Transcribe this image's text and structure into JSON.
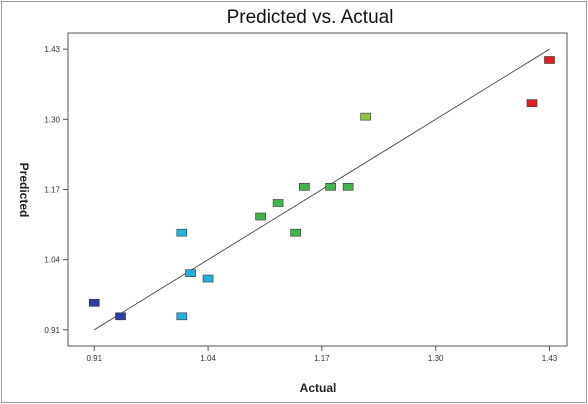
{
  "chart_data": {
    "type": "scatter",
    "title": "Predicted vs. Actual",
    "xlabel": "Actual",
    "ylabel": "Predicted",
    "xlim": [
      0.88,
      1.45
    ],
    "ylim": [
      0.88,
      1.46
    ],
    "xticks": [
      "0.91",
      "1.04",
      "1.17",
      "1.30",
      "1.43"
    ],
    "yticks": [
      "0.91",
      "1.04",
      "1.17",
      "1.30",
      "1.43"
    ],
    "grid": false,
    "reference_line": {
      "x": [
        0.91,
        1.43
      ],
      "y": [
        0.91,
        1.43
      ]
    },
    "points": [
      {
        "x": 0.91,
        "y": 0.96,
        "color": "#2d3fa8"
      },
      {
        "x": 0.94,
        "y": 0.935,
        "color": "#2d3fa8"
      },
      {
        "x": 1.01,
        "y": 1.09,
        "color": "#22b0e0"
      },
      {
        "x": 1.01,
        "y": 0.935,
        "color": "#22b0e0"
      },
      {
        "x": 1.02,
        "y": 1.015,
        "color": "#22b0e0"
      },
      {
        "x": 1.04,
        "y": 1.005,
        "color": "#22b0e0"
      },
      {
        "x": 1.1,
        "y": 1.12,
        "color": "#3fb54a"
      },
      {
        "x": 1.12,
        "y": 1.145,
        "color": "#3fb54a"
      },
      {
        "x": 1.14,
        "y": 1.09,
        "color": "#3fb54a"
      },
      {
        "x": 1.15,
        "y": 1.175,
        "color": "#3fb54a"
      },
      {
        "x": 1.18,
        "y": 1.175,
        "color": "#3fb54a"
      },
      {
        "x": 1.2,
        "y": 1.175,
        "color": "#3fb54a"
      },
      {
        "x": 1.22,
        "y": 1.305,
        "color": "#8cc63f"
      },
      {
        "x": 1.41,
        "y": 1.33,
        "color": "#e0201e"
      },
      {
        "x": 1.43,
        "y": 1.41,
        "color": "#e0201e"
      }
    ]
  }
}
